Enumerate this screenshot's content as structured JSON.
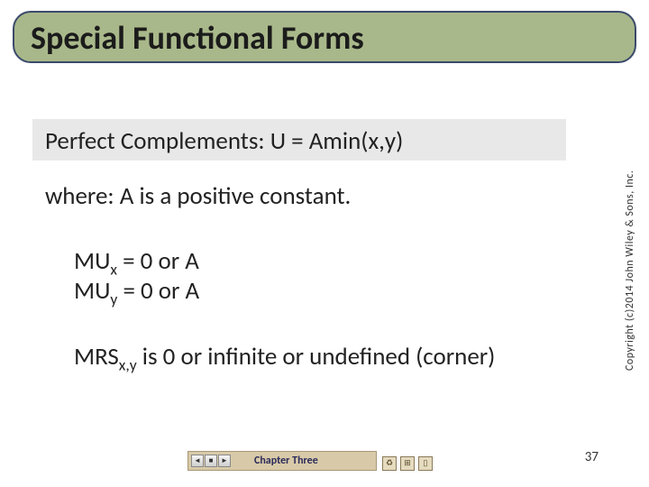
{
  "title": "Special Functional Forms",
  "heading": "Perfect Complements:  U = Amin(x,y)",
  "where_line": "where: A is a positive constant.",
  "mu_x_prefix": "MU",
  "mu_x_sub": "x",
  "mu_x_rest": " = 0 or A",
  "mu_y_prefix": "MU",
  "mu_y_sub": "y",
  "mu_y_rest": " = 0 or A",
  "mrs_prefix": "MRS",
  "mrs_sub": "x,y",
  "mrs_rest": " is 0 or infinite or undefined (corner)",
  "copyright": "Copyright (c)2014 John Wiley & Sons, Inc.",
  "chapter": "Chapter Three",
  "page_number": "37",
  "nav": {
    "prev": "◄",
    "stop": "■",
    "next": "►"
  },
  "colors": {
    "title_bg": "#a9b88a",
    "title_border": "#3a4a6b",
    "content_bg": "#e8e8e8",
    "footer_bg": "#d8caa8"
  }
}
